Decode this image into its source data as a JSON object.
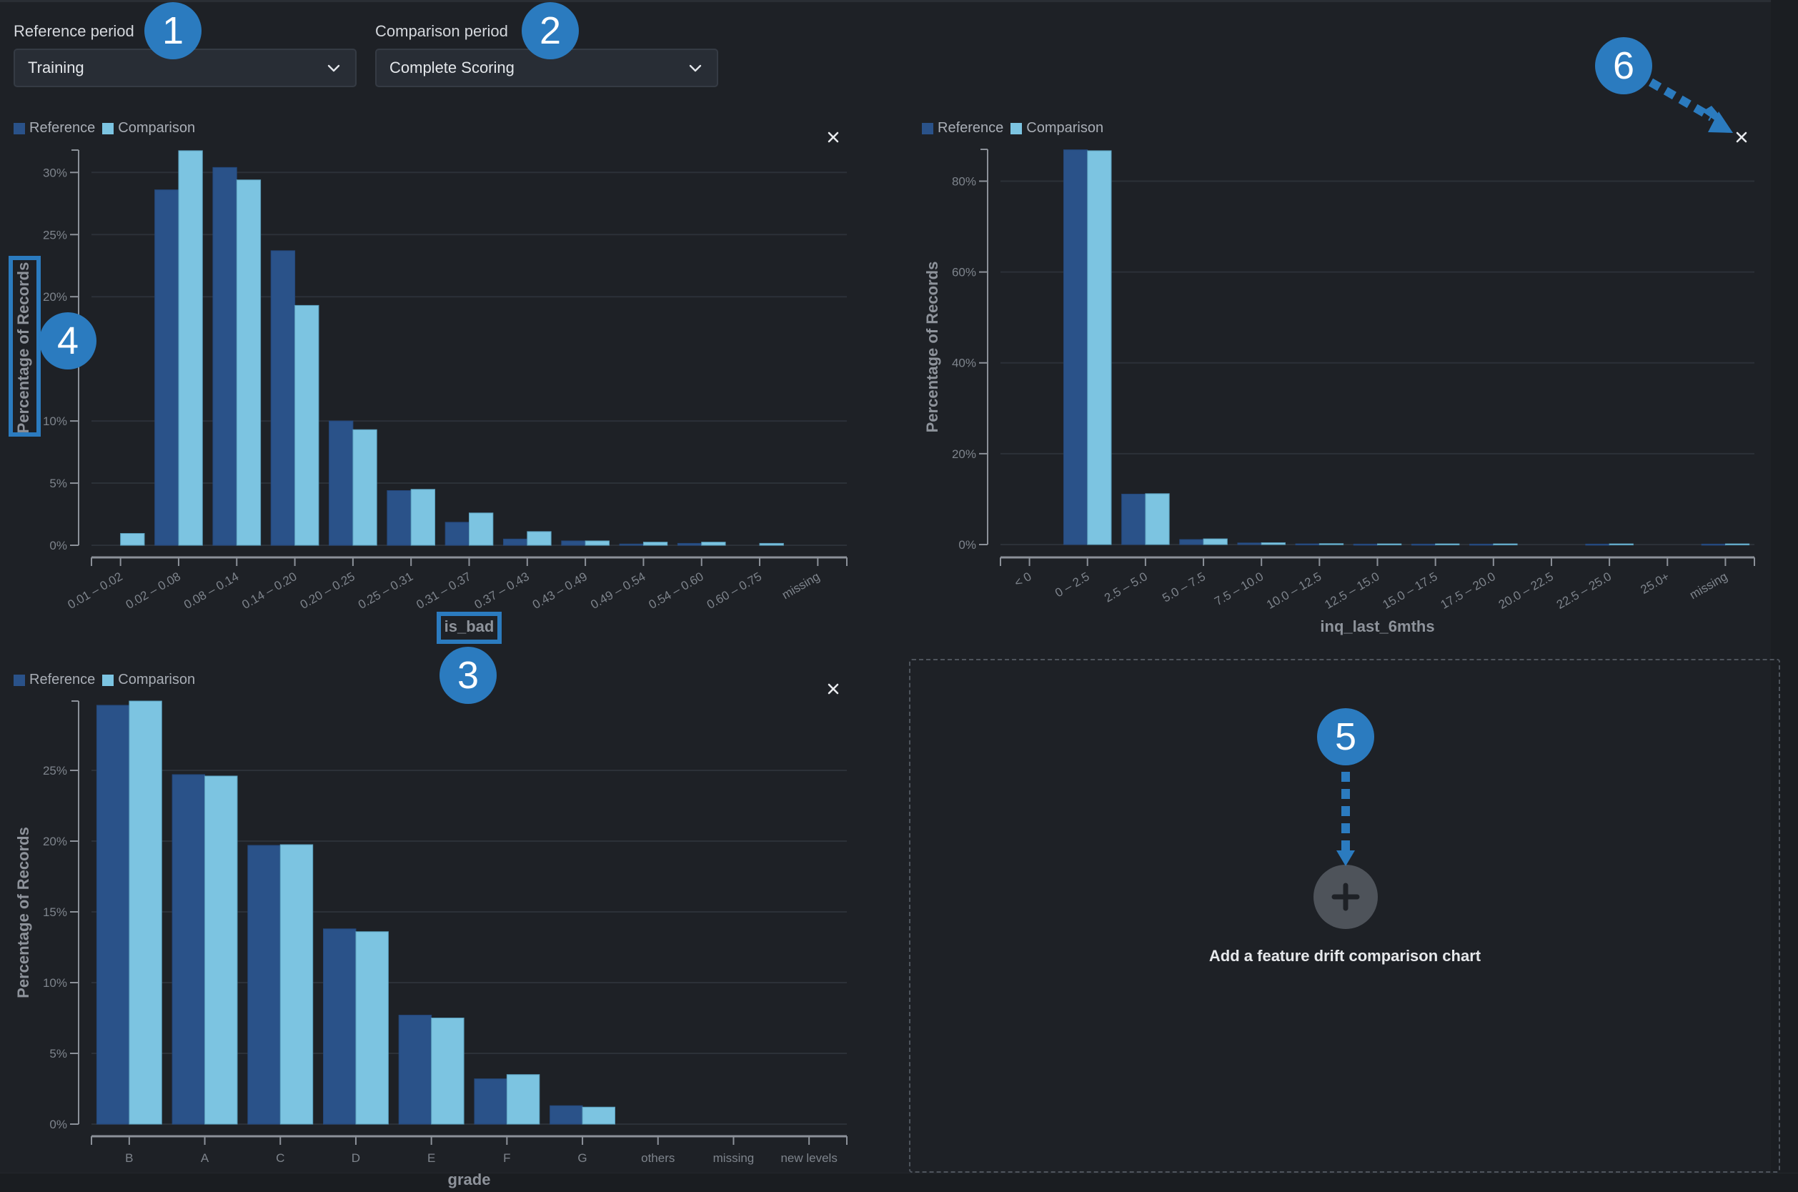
{
  "controls": {
    "reference_period": {
      "label": "Reference period",
      "value": "Training"
    },
    "comparison_period": {
      "label": "Comparison period",
      "value": "Complete Scoring"
    }
  },
  "legend": {
    "reference": "Reference",
    "comparison": "Comparison"
  },
  "colors": {
    "reference": "#2a5289",
    "comparison": "#7cc4e1",
    "background": "#1e2126",
    "annotation": "#2b7bbf"
  },
  "add_chart": {
    "label": "Add a feature drift comparison chart",
    "icon": "plus-icon"
  },
  "close_icon": "close-icon",
  "annotations": [
    "1",
    "2",
    "3",
    "4",
    "5",
    "6"
  ],
  "chart_data": [
    {
      "id": "is_bad",
      "type": "bar",
      "title": "",
      "xlabel": "is_bad",
      "ylabel": "Percentage of Records",
      "ylim": [
        0,
        31.8
      ],
      "yticks": [
        0,
        5,
        10,
        20,
        25,
        30
      ],
      "ytick_labels": [
        "0%",
        "5%",
        "10%",
        "20%",
        "25%",
        "30%"
      ],
      "grid": true,
      "legend": "top-left",
      "categories": [
        "0.01 – 0.02",
        "0.02 – 0.08",
        "0.08 – 0.14",
        "0.14 – 0.20",
        "0.20 – 0.25",
        "0.25 – 0.31",
        "0.31 – 0.37",
        "0.37 – 0.43",
        "0.43 – 0.49",
        "0.49 – 0.54",
        "0.54 – 0.60",
        "0.60 – 0.75",
        "missing"
      ],
      "series": [
        {
          "name": "Reference",
          "values": [
            0,
            28.6,
            30.4,
            23.7,
            10.0,
            4.4,
            1.85,
            0.5,
            0.35,
            0.1,
            0.15,
            0,
            0
          ]
        },
        {
          "name": "Comparison",
          "values": [
            0.95,
            31.75,
            29.4,
            19.3,
            9.3,
            4.5,
            2.6,
            1.1,
            0.35,
            0.25,
            0.25,
            0.15,
            0
          ]
        }
      ]
    },
    {
      "id": "inq_last_6mths",
      "type": "bar",
      "title": "",
      "xlabel": "inq_last_6mths",
      "ylabel": "Percentage of Records",
      "ylim": [
        0,
        87
      ],
      "yticks": [
        0,
        20,
        40,
        60,
        80
      ],
      "ytick_labels": [
        "0%",
        "20%",
        "40%",
        "60%",
        "80%"
      ],
      "grid": true,
      "legend": "top-left",
      "categories": [
        "< 0",
        "0 – 2.5",
        "2.5 – 5.0",
        "5.0 – 7.5",
        "7.5 – 10.0",
        "10.0 – 12.5",
        "12.5 – 15.0",
        "15.0 – 17.5",
        "17.5 – 20.0",
        "20.0 – 22.5",
        "22.5 – 25.0",
        "25.0+",
        "missing"
      ],
      "series": [
        {
          "name": "Reference",
          "values": [
            0,
            86.9,
            11.1,
            1.1,
            0.35,
            0.15,
            0.1,
            0.1,
            0.1,
            0,
            0.1,
            0,
            0.1
          ]
        },
        {
          "name": "Comparison",
          "values": [
            0,
            86.7,
            11.2,
            1.25,
            0.4,
            0.2,
            0.15,
            0.15,
            0.15,
            0,
            0.15,
            0,
            0.15
          ]
        }
      ]
    },
    {
      "id": "grade",
      "type": "bar",
      "title": "",
      "xlabel": "grade",
      "ylabel": "Percentage of Records",
      "ylim": [
        0,
        29.9
      ],
      "yticks": [
        0,
        5,
        10,
        15,
        20,
        25
      ],
      "ytick_labels": [
        "0%",
        "5%",
        "10%",
        "15%",
        "20%",
        "25%"
      ],
      "grid": true,
      "legend": "top-left",
      "categories": [
        "B",
        "A",
        "C",
        "D",
        "E",
        "F",
        "G",
        "others",
        "missing",
        "new levels"
      ],
      "series": [
        {
          "name": "Reference",
          "values": [
            29.6,
            24.7,
            19.7,
            13.8,
            7.7,
            3.2,
            1.3,
            0,
            0,
            0
          ]
        },
        {
          "name": "Comparison",
          "values": [
            29.9,
            24.6,
            19.75,
            13.6,
            7.5,
            3.5,
            1.2,
            0,
            0,
            0
          ]
        }
      ]
    }
  ]
}
